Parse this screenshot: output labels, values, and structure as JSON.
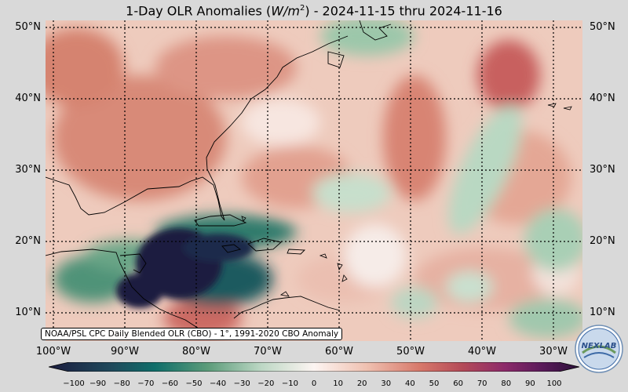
{
  "header": {
    "title_prefix": "1-Day OLR Anomalies (",
    "title_unit": "W/m",
    "title_sup": "2",
    "title_suffix": ") - 2024-11-15 thru 2024-11-16"
  },
  "axes": {
    "lat_labels": [
      "50°N",
      "40°N",
      "30°N",
      "20°N",
      "10°N"
    ],
    "lon_labels": [
      "100°W",
      "90°W",
      "80°W",
      "70°W",
      "60°W",
      "50°W",
      "40°W",
      "30°W"
    ]
  },
  "source_note": "NOAA/PSL CPC Daily Blended OLR (CBO) - 1°, 1991-2020 CBO Anomaly",
  "colorbar": {
    "ticks": [
      "−100",
      "−90",
      "−80",
      "−70",
      "−60",
      "−50",
      "−40",
      "−30",
      "−20",
      "−10",
      "0",
      "10",
      "20",
      "30",
      "40",
      "50",
      "60",
      "70",
      "80",
      "90",
      "100"
    ],
    "colors": {
      "min": "#1b1d3f",
      "strong_negative": "#0f6e6a",
      "negative": "#5c9c7a",
      "weak_negative": "#bcd7c4",
      "neutral": "#fdf5f2",
      "weak_positive": "#efc0b0",
      "positive": "#d7786a",
      "strong_positive": "#b44a58",
      "max": "#2a1038"
    }
  },
  "logo": {
    "text": "NEXLAB"
  },
  "colors": {
    "background": "#d9d9d9",
    "map_base": "#f0d1c4",
    "grid": "#000000"
  }
}
